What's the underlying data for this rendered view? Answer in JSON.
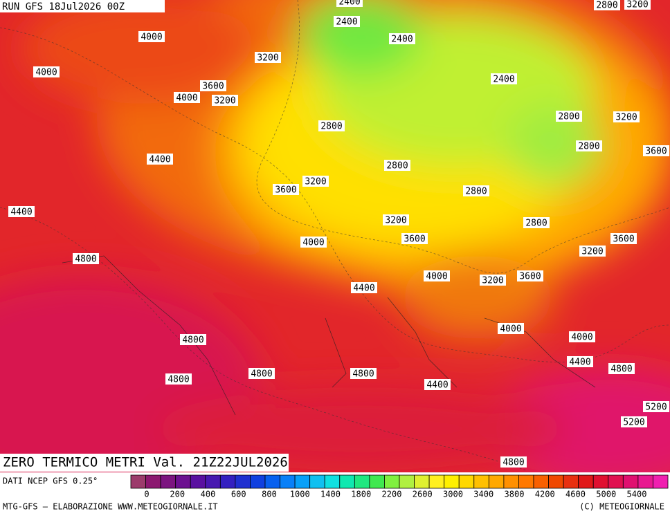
{
  "header": {
    "run": "RUN GFS 18Jul2026 00Z"
  },
  "map": {
    "title": "ZERO TERMICO METRI Val. 21Z22JUL2026",
    "contour_labels": [
      2400,
      2400,
      2400,
      2400,
      2800,
      3200,
      4000,
      4000,
      3200,
      3600,
      4000,
      3200,
      2800,
      2800,
      3200,
      2800,
      3600,
      4400,
      2800,
      3200,
      3600,
      2800,
      4400,
      3200,
      2800,
      3600,
      4000,
      3600,
      3200,
      4800,
      4000,
      3200,
      3600,
      4400,
      4000,
      4000,
      4800,
      4400,
      4800,
      4800,
      4800,
      4800,
      4400,
      5200,
      5200,
      4800
    ]
  },
  "legend": {
    "source": "DATI NCEP GFS 0.25°",
    "colors": [
      "#9c3c6c",
      "#8c1870",
      "#7c1480",
      "#6c1090",
      "#5a10a0",
      "#4818b0",
      "#3420c0",
      "#2030d0",
      "#1040e0",
      "#0860f0",
      "#0880f8",
      "#08a0f8",
      "#10c0f0",
      "#10e0e0",
      "#10e8b0",
      "#20e880",
      "#40e850",
      "#80f040",
      "#b0f040",
      "#e0f030",
      "#fff020",
      "#fff000",
      "#ffd800",
      "#ffc000",
      "#ffa800",
      "#ff9000",
      "#ff7800",
      "#f86000",
      "#f04800",
      "#e83010",
      "#e01818",
      "#e01030",
      "#e01050",
      "#e01070",
      "#e81890",
      "#f020b0"
    ],
    "labels": [
      0,
      200,
      400,
      600,
      800,
      1000,
      1400,
      1800,
      2200,
      2600,
      3000,
      3400,
      3800,
      4200,
      4600,
      5000,
      5400
    ]
  },
  "footer": {
    "left": "MTG-GFS – ELABORAZIONE WWW.METEOGIORNALE.IT",
    "right": "(C) METEOGIORNALE"
  }
}
